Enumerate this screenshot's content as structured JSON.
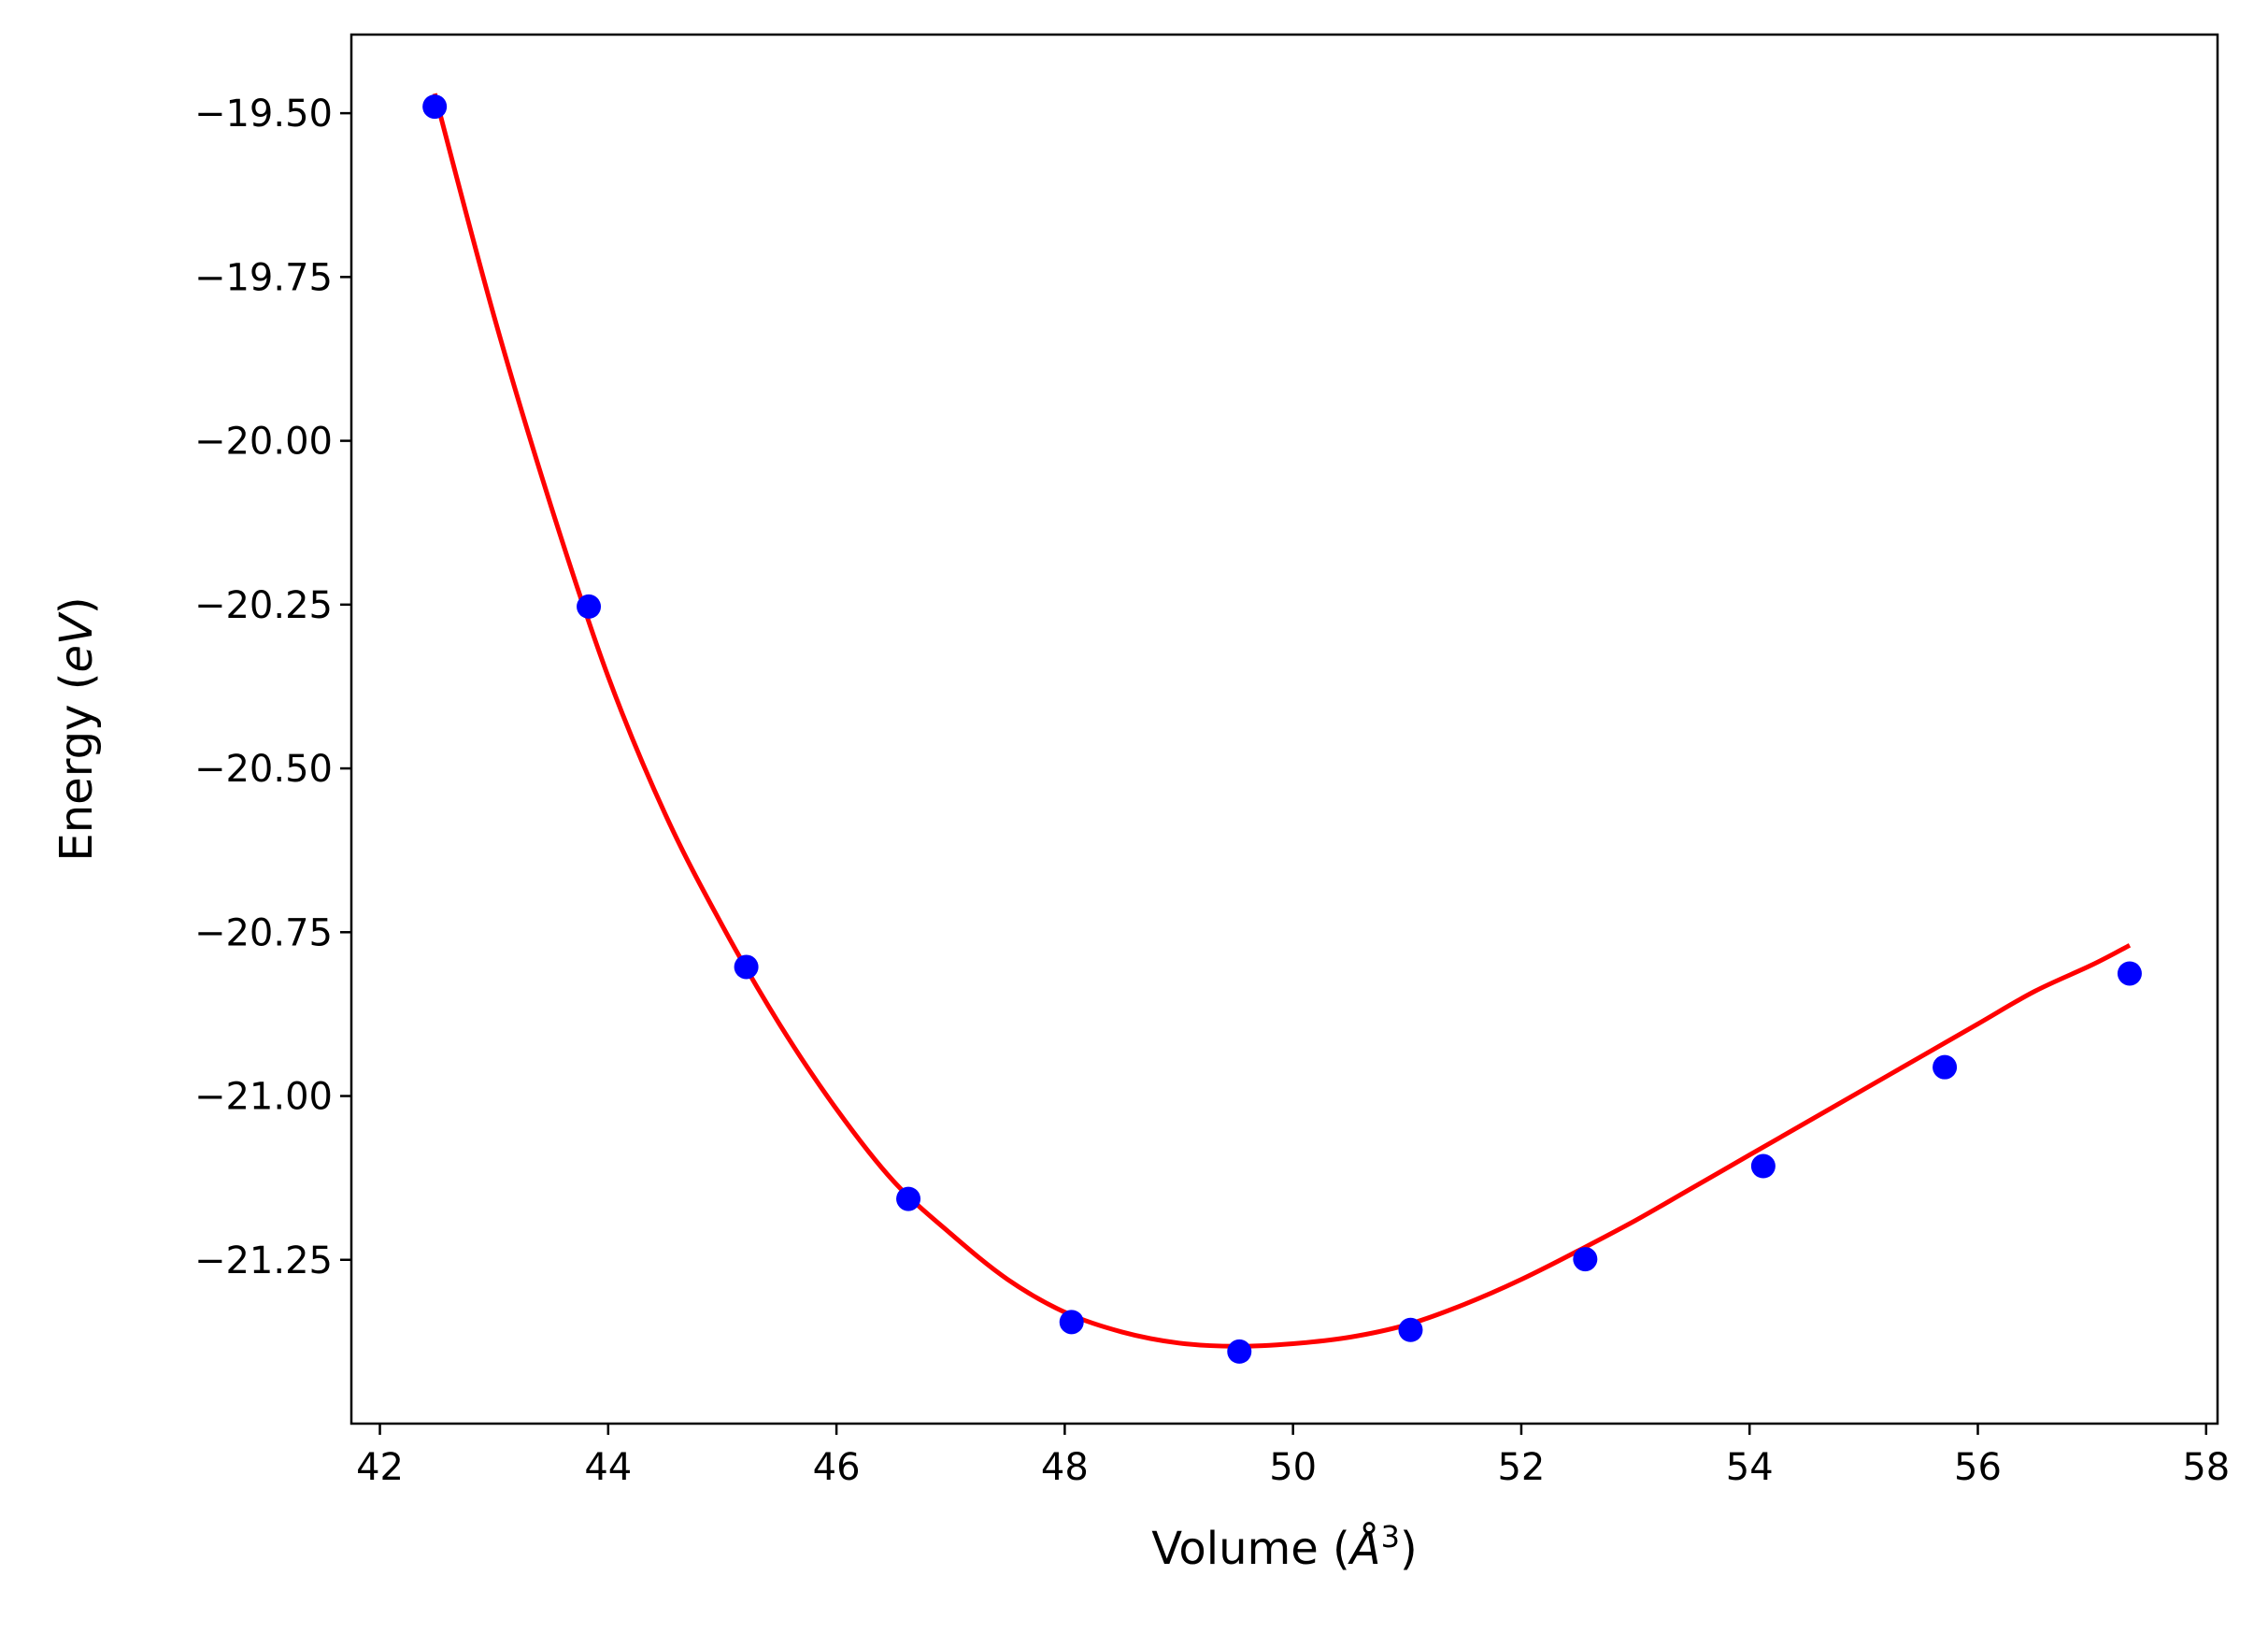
{
  "chart_data": {
    "type": "scatter",
    "title": "",
    "xlabel_main": "Volume (",
    "xlabel_unit_symbol": "Å",
    "xlabel_unit_exponent": "3",
    "xlabel_tail": ")",
    "ylabel_main": "Energy (",
    "ylabel_unit": "eV",
    "ylabel_tail": ")",
    "xlim": [
      41.75,
      58.1
    ],
    "ylim": [
      -21.5,
      -19.38
    ],
    "xticks": [
      42,
      44,
      46,
      48,
      50,
      52,
      54,
      56,
      58
    ],
    "xtick_labels": [
      "42",
      "44",
      "46",
      "48",
      "50",
      "52",
      "54",
      "56",
      "58"
    ],
    "yticks": [
      -19.5,
      -19.75,
      -20.0,
      -20.25,
      -20.5,
      -20.75,
      -21.0,
      -21.25
    ],
    "ytick_labels": [
      "−19.50",
      "−19.75",
      "−20.00",
      "−20.25",
      "−20.50",
      "−20.75",
      "−21.00",
      "−21.25"
    ],
    "grid": false,
    "legend": false,
    "series": [
      {
        "kind": "points",
        "color": "#0000ff",
        "x": [
          42.48,
          43.83,
          45.21,
          46.63,
          48.06,
          49.53,
          51.03,
          52.56,
          54.12,
          55.71,
          57.33
        ],
        "y": [
          -19.49,
          -20.253,
          -20.803,
          -21.157,
          -21.345,
          -21.39,
          -21.357,
          -21.249,
          -21.107,
          -20.956,
          -20.813
        ]
      },
      {
        "kind": "fit-curve",
        "color": "#ff0000",
        "x": [
          42.48,
          43.0,
          43.5,
          44.0,
          44.5,
          45.0,
          45.5,
          46.0,
          46.5,
          47.0,
          47.5,
          48.0,
          48.5,
          49.0,
          49.5,
          50.0,
          50.5,
          51.0,
          51.5,
          52.0,
          52.5,
          53.0,
          53.5,
          54.0,
          54.5,
          55.0,
          55.5,
          56.0,
          56.5,
          57.0,
          57.33
        ],
        "y": [
          -19.47,
          -19.81,
          -20.1,
          -20.36,
          -20.57,
          -20.74,
          -20.89,
          -21.02,
          -21.13,
          -21.21,
          -21.28,
          -21.33,
          -21.36,
          -21.377,
          -21.382,
          -21.378,
          -21.368,
          -21.349,
          -21.318,
          -21.28,
          -21.236,
          -21.19,
          -21.14,
          -21.09,
          -21.04,
          -20.99,
          -20.94,
          -20.89,
          -20.84,
          -20.8,
          -20.77
        ]
      }
    ]
  }
}
